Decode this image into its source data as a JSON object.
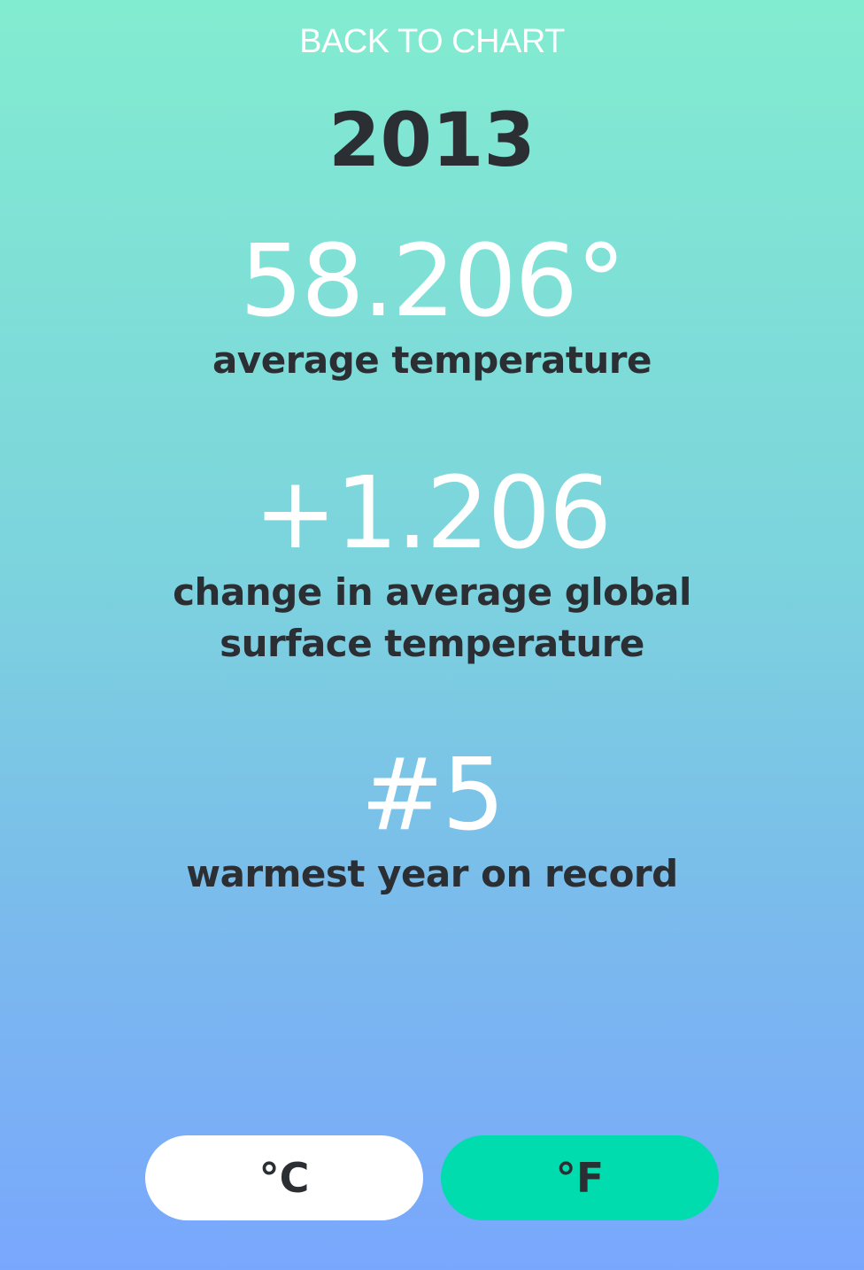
{
  "nav": {
    "back_label": "BACK TO CHART"
  },
  "year": "2013",
  "stats": [
    {
      "value": "58.206°",
      "label": "average temperature"
    },
    {
      "value": "+1.206",
      "label_line1": "change in average global",
      "label_line2": "surface temperature"
    },
    {
      "value": "#5",
      "label": "warmest year on record"
    }
  ],
  "units": {
    "celsius_label": "°C",
    "fahrenheit_label": "°F",
    "selected": "°F"
  },
  "colors": {
    "gradient_top": "#82ecd0",
    "gradient_bottom": "#79a7fd",
    "accent": "#00dcad",
    "text_dark": "#2b2e33"
  }
}
